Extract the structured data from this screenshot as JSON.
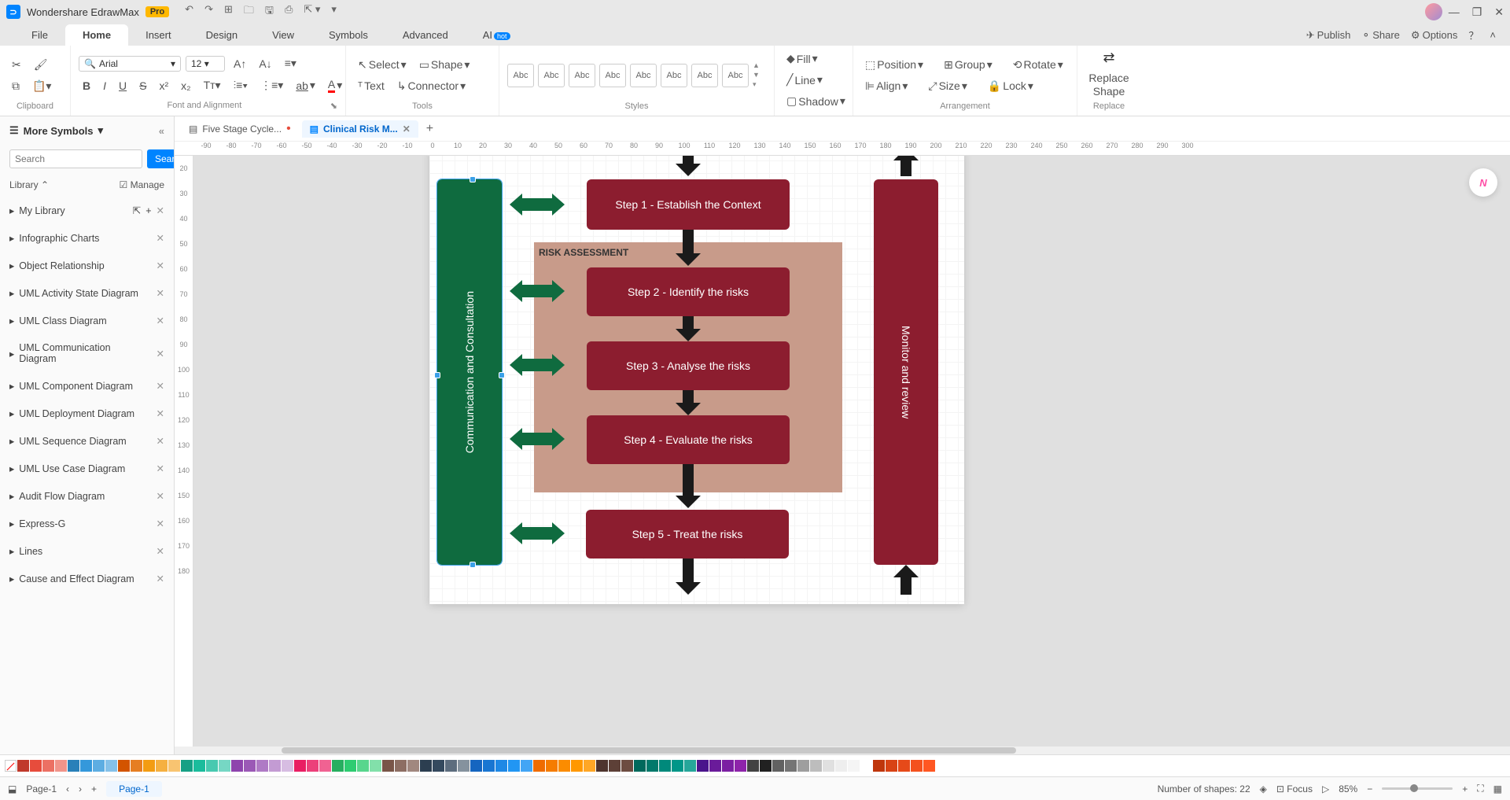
{
  "app": {
    "name": "Wondershare EdrawMax",
    "badge": "Pro"
  },
  "menubar": {
    "items": [
      "File",
      "Home",
      "Insert",
      "Design",
      "View",
      "Symbols",
      "Advanced",
      "AI"
    ],
    "active": "Home",
    "right": {
      "publish": "Publish",
      "share": "Share",
      "options": "Options"
    }
  },
  "ribbon": {
    "font_name": "Arial",
    "font_size": "12",
    "tools": {
      "select": "Select",
      "text": "Text",
      "shape": "Shape",
      "connector": "Connector"
    },
    "style_label": "Abc",
    "fillgrp": {
      "fill": "Fill",
      "line": "Line",
      "shadow": "Shadow"
    },
    "arrange": {
      "position": "Position",
      "align": "Align",
      "group": "Group",
      "size": "Size",
      "rotate": "Rotate",
      "lock": "Lock"
    },
    "replace": "Replace Shape",
    "group_labels": {
      "clipboard": "Clipboard",
      "font": "Font and Alignment",
      "tools": "Tools",
      "styles": "Styles",
      "arrangement": "Arrangement",
      "replace": "Replace"
    }
  },
  "leftpanel": {
    "title": "More Symbols",
    "search_placeholder": "Search",
    "search_btn": "Search",
    "library": "Library",
    "manage": "Manage",
    "mylibrary": "My Library",
    "items": [
      "Infographic Charts",
      "Object Relationship",
      "UML Activity State Diagram",
      "UML Class Diagram",
      "UML Communication Diagram",
      "UML Component Diagram",
      "UML Deployment Diagram",
      "UML Sequence Diagram",
      "UML Use Case Diagram",
      "Audit Flow Diagram",
      "Express-G",
      "Lines",
      "Cause and Effect Diagram"
    ]
  },
  "doctabs": {
    "tab1": "Five Stage Cycle...",
    "tab2": "Clinical Risk M..."
  },
  "ruler_h": [
    "-90",
    "-80",
    "-70",
    "-60",
    "-50",
    "-40",
    "-30",
    "-20",
    "-10",
    "0",
    "10",
    "20",
    "30",
    "40",
    "50",
    "60",
    "70",
    "80",
    "90",
    "100",
    "110",
    "120",
    "130",
    "140",
    "150",
    "160",
    "170",
    "180",
    "190",
    "200",
    "210",
    "220",
    "230",
    "240",
    "250",
    "260",
    "270",
    "280",
    "290",
    "300"
  ],
  "ruler_v": [
    "20",
    "30",
    "40",
    "50",
    "60",
    "70",
    "80",
    "90",
    "100",
    "110",
    "120",
    "130",
    "140",
    "150",
    "160",
    "170",
    "180"
  ],
  "flowchart": {
    "green_vert_label": "Communication and Consultation",
    "red_vert_label": "Monitor and review",
    "tan_label": "RISK ASSESSMENT",
    "step1": "Step 1 - Establish the Context",
    "step2": "Step 2 - Identify  the risks",
    "step3": "Step 3 - Analyse the risks",
    "step4": "Step 4 - Evaluate the risks",
    "step5": "Step 5 - Treat the risks",
    "colors": {
      "green": "#0f6b3f",
      "red": "#8c1d2f",
      "tan": "#c89b8a",
      "arrow": "#1a1a1a"
    }
  },
  "palette_colors": [
    "#c0392b",
    "#e74c3c",
    "#ec7063",
    "#f1948a",
    "#2980b9",
    "#3498db",
    "#5dade2",
    "#85c1e9",
    "#d35400",
    "#e67e22",
    "#f39c12",
    "#f5b041",
    "#f8c471",
    "#16a085",
    "#1abc9c",
    "#48c9b0",
    "#76d7c4",
    "#8e44ad",
    "#9b59b6",
    "#af7ac5",
    "#c39bd3",
    "#d7bde2",
    "#e91e63",
    "#ec407a",
    "#f06292",
    "#27ae60",
    "#2ecc71",
    "#58d68d",
    "#82e0aa",
    "#795548",
    "#8d6e63",
    "#a1887f",
    "#2c3e50",
    "#34495e",
    "#5d6d7e",
    "#85929e",
    "#1565c0",
    "#1976d2",
    "#1e88e5",
    "#2196f3",
    "#42a5f5",
    "#ef6c00",
    "#f57c00",
    "#fb8c00",
    "#ff9800",
    "#ffa726",
    "#4e342e",
    "#5d4037",
    "#6d4c41",
    "#00695c",
    "#00796b",
    "#00897b",
    "#009688",
    "#26a69a",
    "#4a148c",
    "#6a1b9a",
    "#7b1fa2",
    "#8e24aa",
    "#424242",
    "#212121",
    "#616161",
    "#757575",
    "#9e9e9e",
    "#bdbdbd",
    "#e0e0e0",
    "#eeeeee",
    "#f5f5f5",
    "#ffffff",
    "#bf360c",
    "#d84315",
    "#e64a19",
    "#f4511e",
    "#ff5722"
  ],
  "statusbar": {
    "page_label": "Page-1",
    "page_tab": "Page-1",
    "shapes": "Number of shapes: 22",
    "focus": "Focus",
    "zoom": "85%"
  }
}
